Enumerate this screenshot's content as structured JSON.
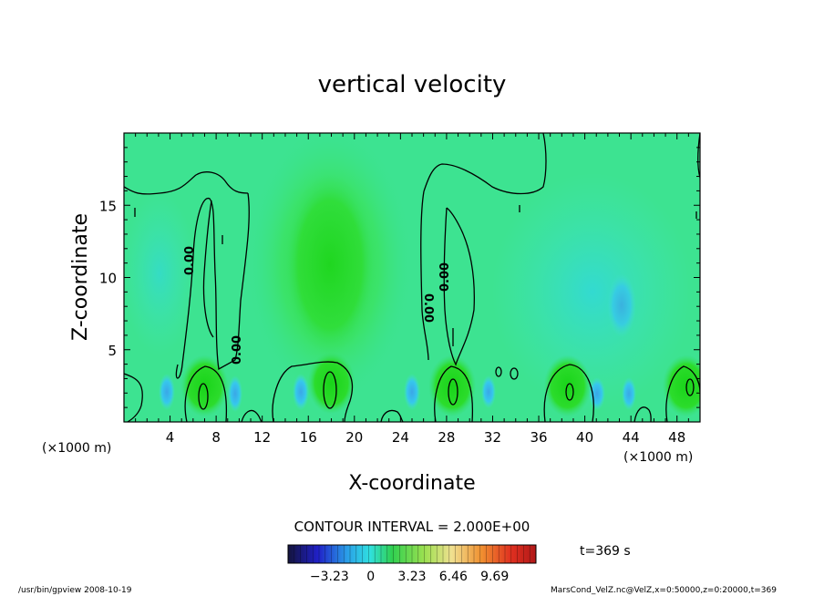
{
  "chart_data": {
    "type": "heatmap",
    "title": "vertical velocity",
    "xlabel": "X-coordinate",
    "ylabel": "Z-coordinate",
    "x_unit_left": "(×1000 m)",
    "x_unit_right": "(×1000 m)",
    "xlim": [
      0,
      50
    ],
    "ylim": [
      0,
      20
    ],
    "x_ticks": [
      "4",
      "8",
      "12",
      "16",
      "20",
      "24",
      "28",
      "32",
      "36",
      "40",
      "44",
      "48"
    ],
    "y_ticks": [
      "5",
      "10",
      "15"
    ],
    "contour_labels": [
      "0.00",
      "0.00",
      "0.00",
      "0.00"
    ],
    "contour_interval_text": "CONTOUR INTERVAL = 2.000E+00",
    "time_text": "t=369 s",
    "colorbar": {
      "tick_labels": [
        "−3.23",
        "0",
        "3.23",
        "6.46",
        "9.69"
      ],
      "range": [
        -6.46,
        12.92
      ]
    },
    "updrafts": [
      {
        "x": 7,
        "z": 2.5
      },
      {
        "x": 18,
        "z": 2.7
      },
      {
        "x": 28.5,
        "z": 2.5
      },
      {
        "x": 38.5,
        "z": 2.5
      },
      {
        "x": 48.8,
        "z": 2.5
      }
    ],
    "grid": false
  },
  "footer": {
    "left": "/usr/bin/gpview   2008-10-19",
    "right": "MarsCond_VelZ.nc@VelZ,x=0:50000,z=0:20000,t=369"
  }
}
